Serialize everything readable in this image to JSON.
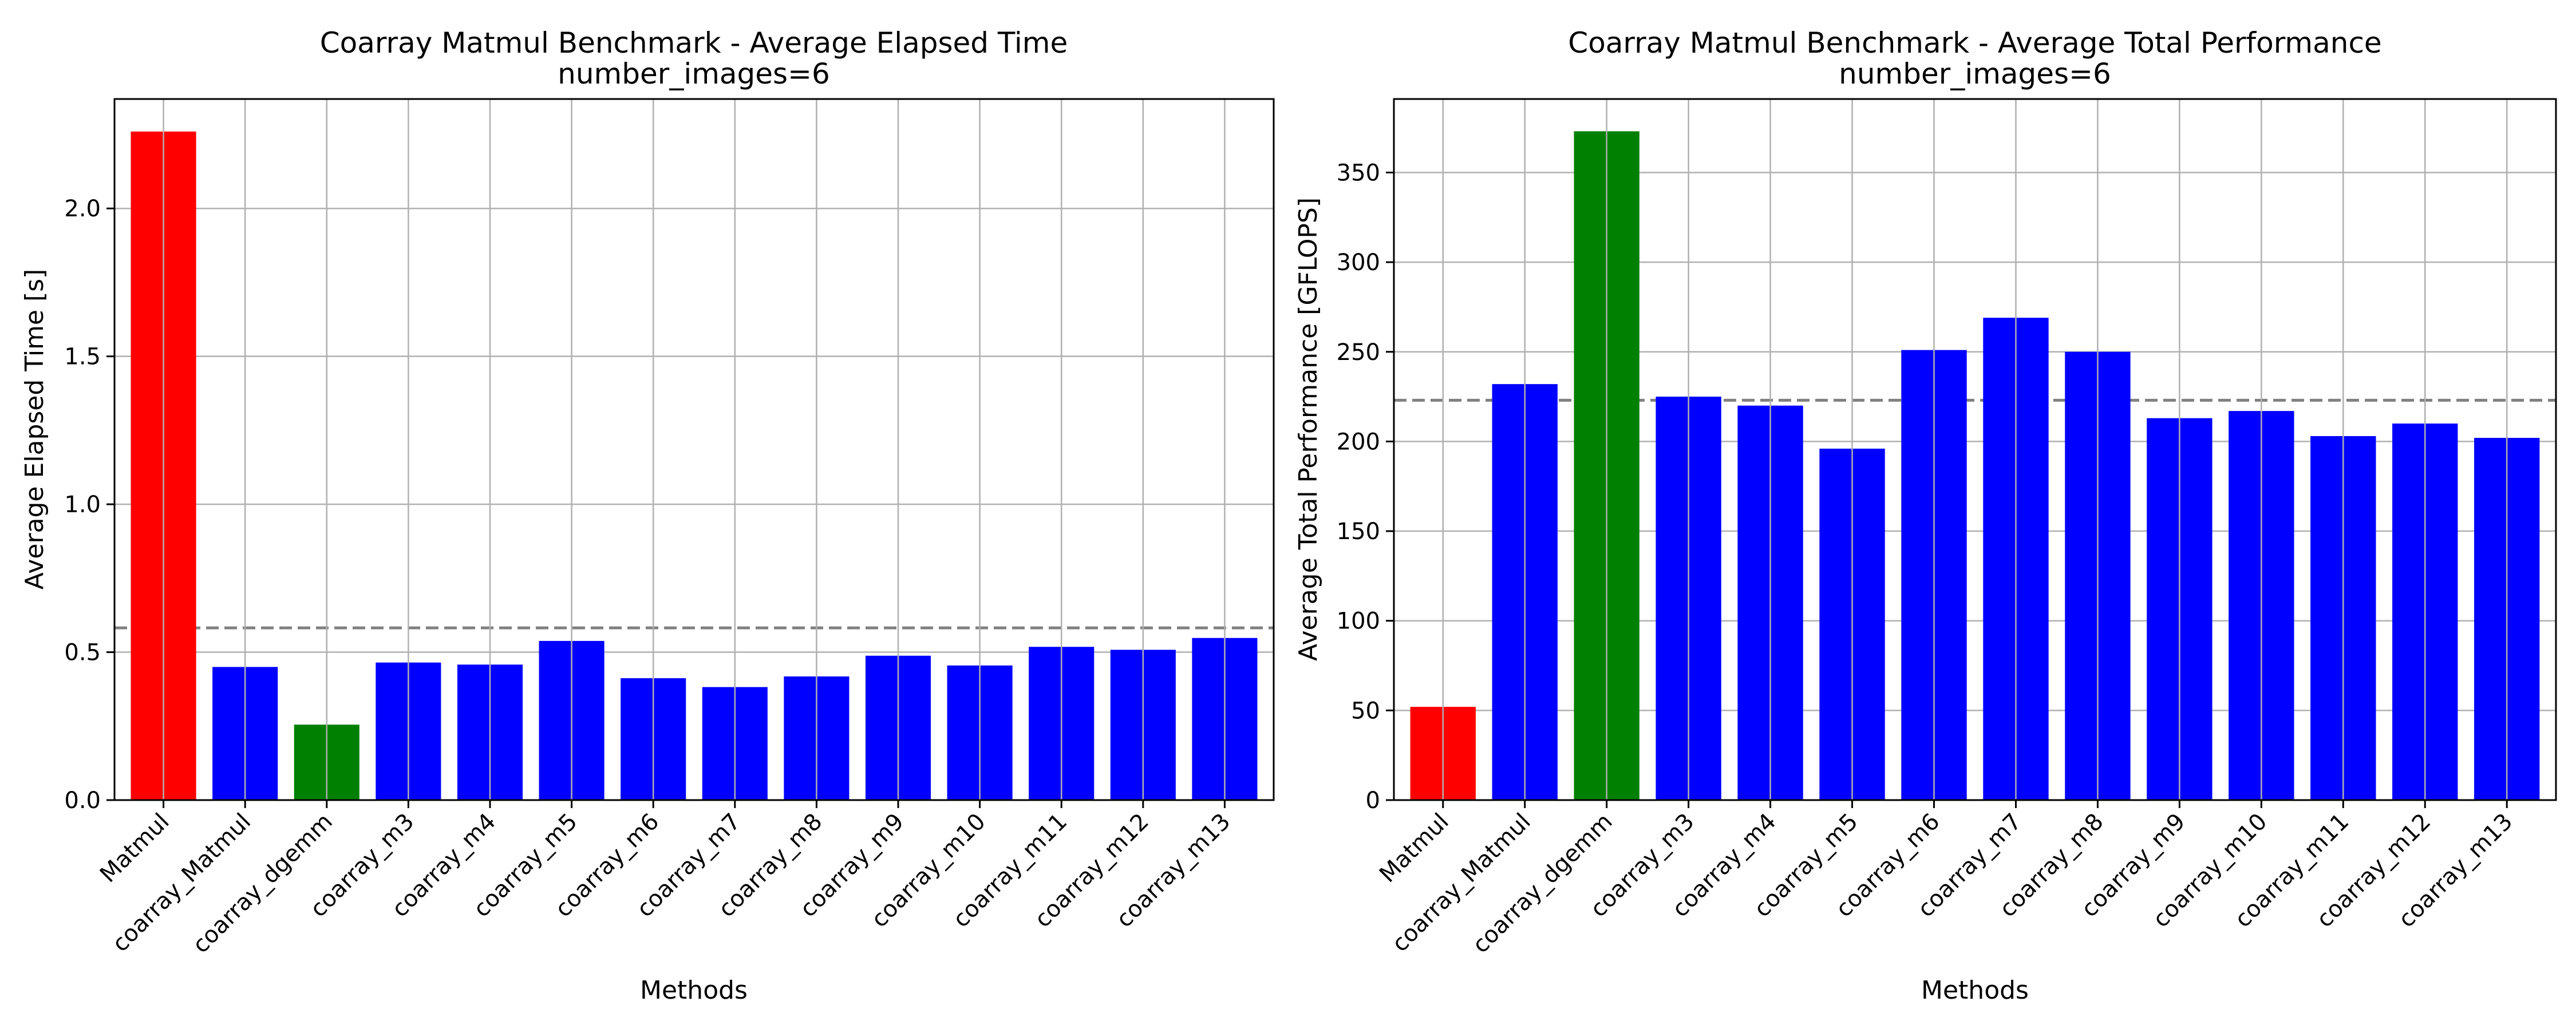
{
  "chart_data": [
    {
      "type": "bar",
      "title": "Coarray Matmul Benchmark - Average Elapsed Time",
      "subtitle": "number_images=6",
      "xlabel": "Methods",
      "ylabel": "Average Elapsed Time [s]",
      "categories": [
        "Matmul",
        "coarray_Matmul",
        "coarray_dgemm",
        "coarray_m3",
        "coarray_m4",
        "coarray_m5",
        "coarray_m6",
        "coarray_m7",
        "coarray_m8",
        "coarray_m9",
        "coarray_m10",
        "coarray_m11",
        "coarray_m12",
        "coarray_m13"
      ],
      "values": [
        2.26,
        0.45,
        0.255,
        0.465,
        0.458,
        0.538,
        0.412,
        0.382,
        0.418,
        0.488,
        0.455,
        0.518,
        0.508,
        0.548
      ],
      "bar_colors": [
        "#ff0000",
        "#0000ff",
        "#008000",
        "#0000ff",
        "#0000ff",
        "#0000ff",
        "#0000ff",
        "#0000ff",
        "#0000ff",
        "#0000ff",
        "#0000ff",
        "#0000ff",
        "#0000ff",
        "#0000ff"
      ],
      "reference_line": 0.582,
      "reference_line_color": "#808080",
      "ylim": [
        0,
        2.37
      ],
      "yticks": [
        0.0,
        0.5,
        1.0,
        1.5,
        2.0
      ],
      "ytick_labels": [
        "0.0",
        "0.5",
        "1.0",
        "1.5",
        "2.0"
      ],
      "grid": true
    },
    {
      "type": "bar",
      "title": "Coarray Matmul Benchmark - Average Total Performance",
      "subtitle": "number_images=6",
      "xlabel": "Methods",
      "ylabel": "Average Total Performance [GFLOPS]",
      "categories": [
        "Matmul",
        "coarray_Matmul",
        "coarray_dgemm",
        "coarray_m3",
        "coarray_m4",
        "coarray_m5",
        "coarray_m6",
        "coarray_m7",
        "coarray_m8",
        "coarray_m9",
        "coarray_m10",
        "coarray_m11",
        "coarray_m12",
        "coarray_m13"
      ],
      "values": [
        52,
        232,
        373,
        225,
        220,
        196,
        251,
        269,
        250,
        213,
        217,
        203,
        210,
        202
      ],
      "bar_colors": [
        "#ff0000",
        "#0000ff",
        "#008000",
        "#0000ff",
        "#0000ff",
        "#0000ff",
        "#0000ff",
        "#0000ff",
        "#0000ff",
        "#0000ff",
        "#0000ff",
        "#0000ff",
        "#0000ff",
        "#0000ff"
      ],
      "reference_line": 223,
      "reference_line_color": "#808080",
      "ylim": [
        0,
        391
      ],
      "yticks": [
        0,
        50,
        100,
        150,
        200,
        250,
        300,
        350
      ],
      "ytick_labels": [
        "0",
        "50",
        "100",
        "150",
        "200",
        "250",
        "300",
        "350"
      ],
      "grid": true
    }
  ]
}
